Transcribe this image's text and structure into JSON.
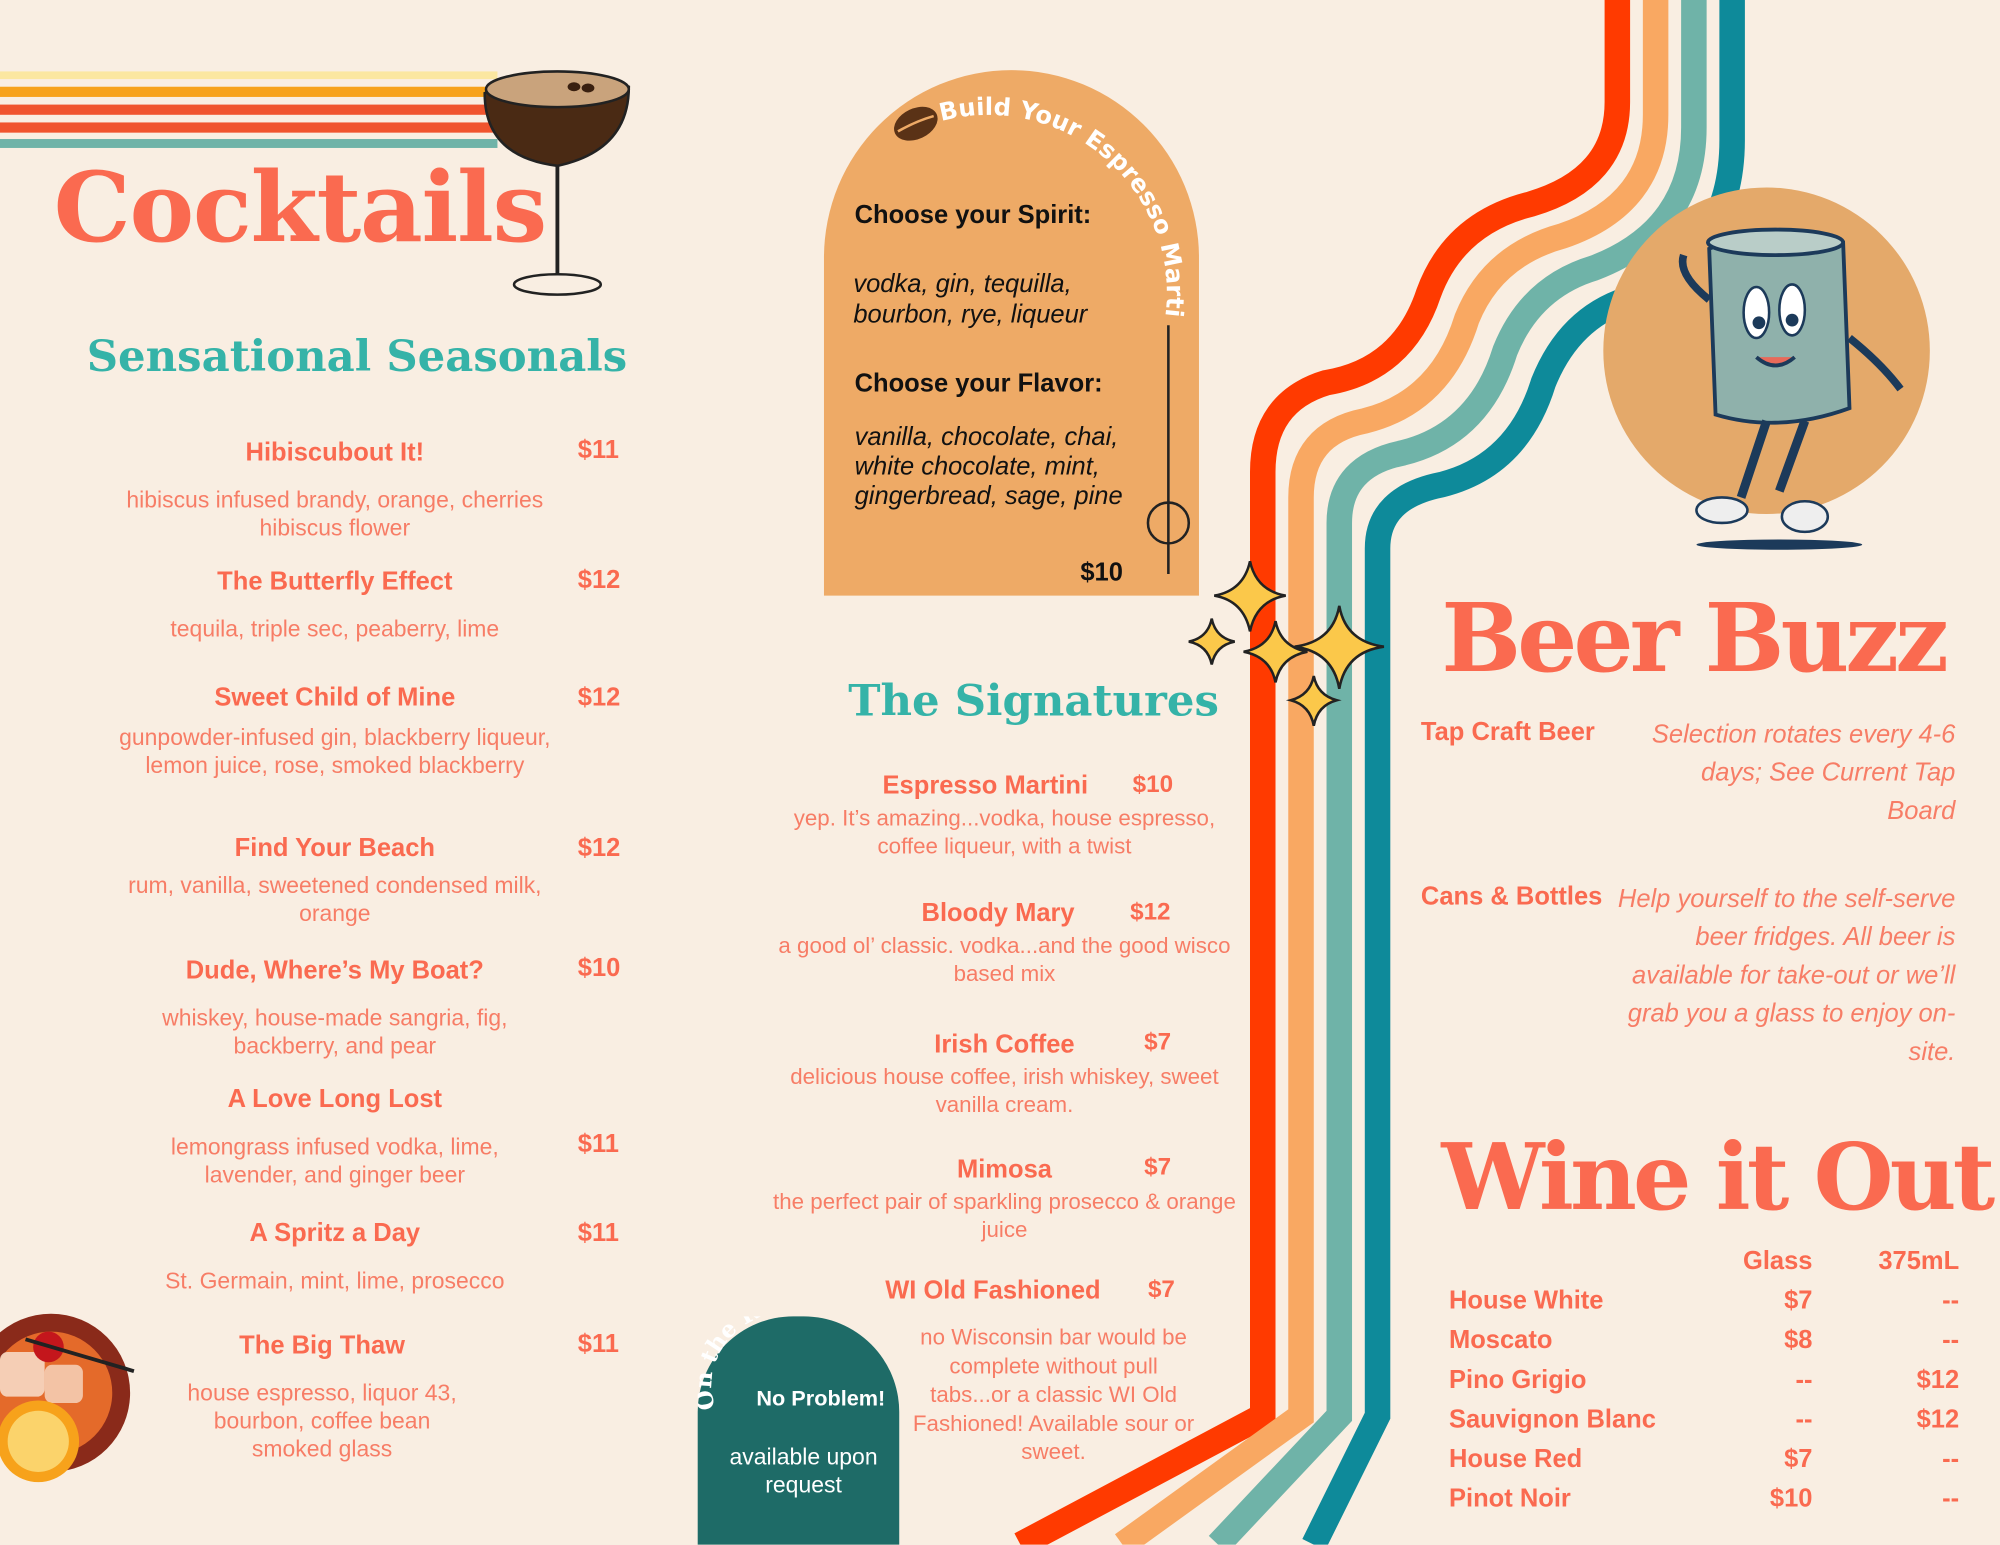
{
  "colors": {
    "background": "#f9eee2",
    "coral": "#fa6a50",
    "teal": "#35b3a8",
    "arch": "#eeaa66",
    "rocks": "#1e6b67",
    "stripe_red": "#ff3a00",
    "stripe_orange": "#f9a862",
    "stripe_teal": "#6fb3a8",
    "stripe_dark_teal": "#0e8a9a"
  },
  "cocktails": {
    "title": "Cocktails",
    "subtitle": "Sensational Seasonals",
    "items": [
      {
        "name": "Hibiscubout It!",
        "price": "$11",
        "desc": "hibiscus infused brandy, orange, cherries hibiscus flower"
      },
      {
        "name": "The Butterfly Effect",
        "price": "$12",
        "desc": "tequila, triple sec, peaberry, lime"
      },
      {
        "name": "Sweet Child of Mine",
        "price": "$12",
        "desc": "gunpowder-infused gin, blackberry liqueur, lemon juice, rose, smoked blackberry"
      },
      {
        "name": "Find Your Beach",
        "price": "$12",
        "desc": "rum, vanilla, sweetened condensed milk, orange"
      },
      {
        "name": "Dude, Where’s My Boat?",
        "price": "$10",
        "desc": "whiskey, house-made sangria, fig, backberry, and pear"
      },
      {
        "name": "A Love Long Lost",
        "price": "$11",
        "desc": "lemongrass infused vodka, lime, lavender, and ginger beer"
      },
      {
        "name": "A Spritz a Day",
        "price": "$11",
        "desc": "St. Germain, mint, lime, prosecco"
      },
      {
        "name": "The Big Thaw",
        "price": "$11",
        "desc": "house espresso, liquor 43, bourbon, coffee bean smoked glass"
      }
    ]
  },
  "espresso_builder": {
    "title": "Build Your Espresso Martini",
    "spirit_label": "Choose your Spirit:",
    "spirits": "vodka, gin, tequilla, bourbon, rye, liqueur",
    "flavor_label": "Choose your Flavor:",
    "flavors": "vanilla, chocolate, chai, white chocolate, mint, gingerbread, sage, pine",
    "price": "$10"
  },
  "signatures": {
    "title": "The Signatures",
    "items": [
      {
        "name": "Espresso Martini",
        "price": "$10",
        "desc": "yep. It’s amazing...vodka, house espresso, coffee liqueur, with a twist"
      },
      {
        "name": "Bloody Mary",
        "price": "$12",
        "desc": "a good ol’ classic. vodka...and the good wisco based mix"
      },
      {
        "name": "Irish Coffee",
        "price": "$7",
        "desc": "delicious house coffee, irish whiskey, sweet vanilla cream."
      },
      {
        "name": "Mimosa",
        "price": "$7",
        "desc": "the perfect pair of sparkling prosecco & orange juice"
      },
      {
        "name": "WI Old Fashioned",
        "price": "$7",
        "desc": "no Wisconsin bar would be complete without pull tabs...or a classic WI Old Fashioned! Available sour or sweet."
      }
    ]
  },
  "rocks": {
    "title": "On the Rocks?",
    "subtitle": "No Problem!",
    "note": "available upon request"
  },
  "beer": {
    "title": "Beer Buzz",
    "items": [
      {
        "label": "Tap Craft Beer",
        "desc": "Selection rotates  every 4-6 days; See Current Tap Board"
      },
      {
        "label": "Cans & Bottles",
        "desc": "Help yourself to the self-serve beer fridges. All beer is available for take-out or we’ll grab you a glass to enjoy on-site."
      }
    ]
  },
  "wine": {
    "title": "Wine it Out",
    "columns": [
      "Glass",
      "375mL"
    ],
    "rows": [
      {
        "name": "House White",
        "glass": "$7",
        "bottle": "--"
      },
      {
        "name": "Moscato",
        "glass": "$8",
        "bottle": "--"
      },
      {
        "name": "Pino Grigio",
        "glass": "--",
        "bottle": "$12"
      },
      {
        "name": "Sauvignon Blanc",
        "glass": "--",
        "bottle": "$12"
      },
      {
        "name": "House Red",
        "glass": "$7",
        "bottle": "--"
      },
      {
        "name": "Pinot Noir",
        "glass": "$10",
        "bottle": "--"
      }
    ]
  }
}
